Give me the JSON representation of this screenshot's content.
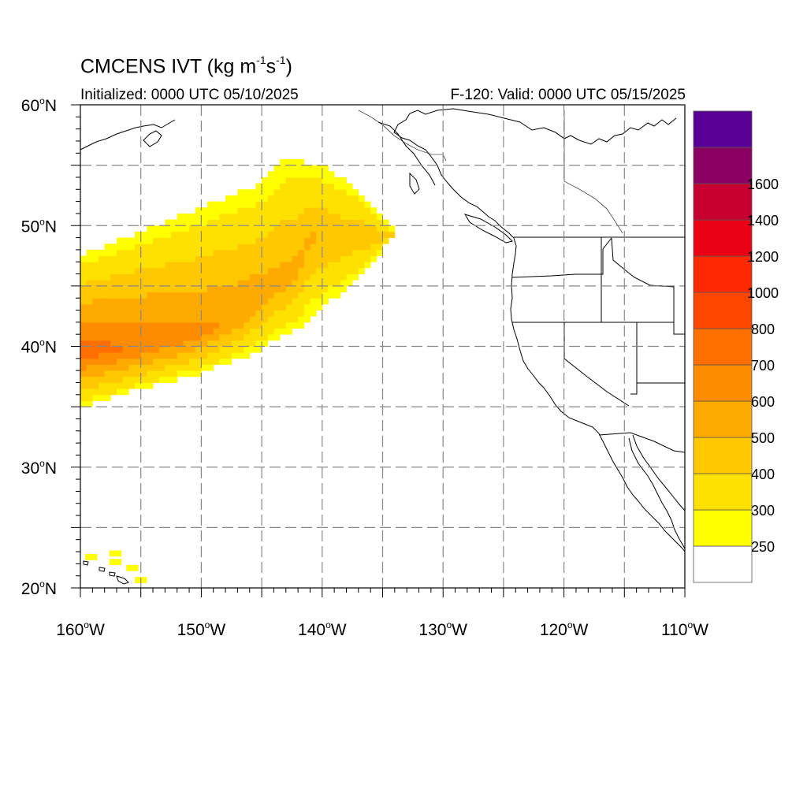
{
  "title": {
    "main": "CMCENS IVT (kg m",
    "exp1": "-1",
    "mid": "s",
    "exp2": "-1",
    "close": ")"
  },
  "init_text": "Initialized: 0000 UTC 05/10/2025",
  "valid_text": "F-120: Valid: 0000 UTC 05/15/2025",
  "map_extent": {
    "lon": [
      -160,
      -110
    ],
    "lat": [
      20,
      60
    ]
  },
  "lat_labels": [
    {
      "lat": 60,
      "deg": "60",
      "hem": "N"
    },
    {
      "lat": 50,
      "deg": "50",
      "hem": "N"
    },
    {
      "lat": 40,
      "deg": "40",
      "hem": "N"
    },
    {
      "lat": 30,
      "deg": "30",
      "hem": "N"
    },
    {
      "lat": 20,
      "deg": "20",
      "hem": "N"
    }
  ],
  "lon_labels": [
    {
      "lon": -160,
      "deg": "160",
      "hem": "W"
    },
    {
      "lon": -150,
      "deg": "150",
      "hem": "W"
    },
    {
      "lon": -140,
      "deg": "140",
      "hem": "W"
    },
    {
      "lon": -130,
      "deg": "130",
      "hem": "W"
    },
    {
      "lon": -120,
      "deg": "120",
      "hem": "W"
    },
    {
      "lon": -110,
      "deg": "110",
      "hem": "W"
    }
  ],
  "grid_lats": [
    25,
    30,
    35,
    40,
    45,
    50,
    55
  ],
  "grid_lons": [
    -155,
    -150,
    -145,
    -140,
    -135,
    -130,
    -125,
    -120,
    -115
  ],
  "colorbar": {
    "colors": [
      "#ffffff",
      "#ffff00",
      "#ffe100",
      "#ffc800",
      "#ffaa00",
      "#ff8c00",
      "#ff6e00",
      "#ff4600",
      "#ff2800",
      "#eb0014",
      "#c80032",
      "#8c0064",
      "#5a0096"
    ],
    "labels": [
      "250",
      "300",
      "400",
      "500",
      "600",
      "700",
      "800",
      "1000",
      "1200",
      "1400",
      "1600"
    ]
  },
  "chart_data": {
    "type": "heatmap",
    "variable": "IVT",
    "units": "kg m-1 s-1",
    "levels": [
      250,
      300,
      400,
      500,
      600,
      700,
      800,
      1000,
      1200,
      1400,
      1600
    ],
    "plume_core_polyline": [
      [
        -160,
        39.5
      ],
      [
        -155,
        40.0
      ],
      [
        -150,
        41.0
      ],
      [
        -147,
        42.5
      ],
      [
        -145,
        44.0
      ],
      [
        -142,
        46.5
      ],
      [
        -141,
        49.0
      ]
    ],
    "plume_edges": {
      "north": [
        [
          -160,
          47.5
        ],
        [
          -155,
          49.5
        ],
        [
          -150,
          51.5
        ],
        [
          -145,
          53.5
        ],
        [
          -143,
          55.5
        ],
        [
          -140,
          55.0
        ],
        [
          -137,
          53.0
        ],
        [
          -134,
          49.5
        ]
      ],
      "south": [
        [
          -160,
          35.0
        ],
        [
          -155,
          36.5
        ],
        [
          -150,
          37.8
        ],
        [
          -146,
          39.3
        ],
        [
          -142,
          41.5
        ],
        [
          -139,
          44.0
        ],
        [
          -136,
          46.5
        ],
        [
          -134,
          49.5
        ]
      ]
    },
    "max_category_level": 700,
    "hawaii_cells_level": 250
  }
}
